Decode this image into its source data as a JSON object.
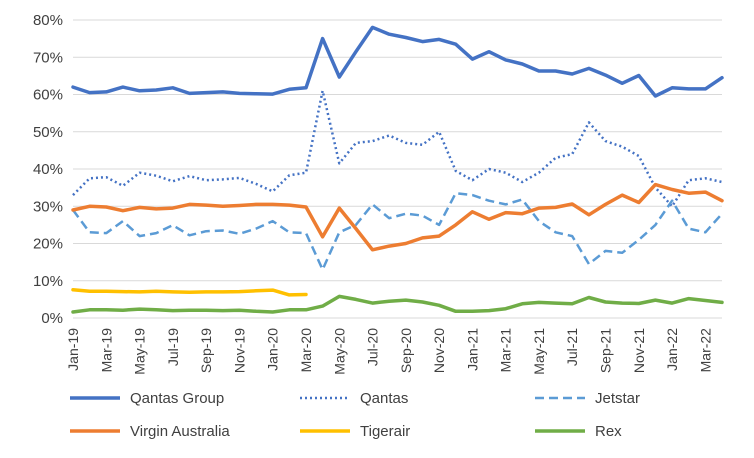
{
  "chart_data": {
    "type": "line",
    "title": "",
    "xlabel": "",
    "ylabel": "",
    "ylim": [
      0,
      0.8
    ],
    "y_ticks": [
      "0%",
      "10%",
      "20%",
      "30%",
      "40%",
      "50%",
      "60%",
      "70%",
      "80%"
    ],
    "grid": "horizontal",
    "legend_position": "bottom",
    "x": [
      "Jan-19",
      "Feb-19",
      "Mar-19",
      "Apr-19",
      "May-19",
      "Jun-19",
      "Jul-19",
      "Aug-19",
      "Sep-19",
      "Oct-19",
      "Nov-19",
      "Dec-19",
      "Jan-20",
      "Feb-20",
      "Mar-20",
      "Apr-20",
      "May-20",
      "Jun-20",
      "Jul-20",
      "Aug-20",
      "Sep-20",
      "Oct-20",
      "Nov-20",
      "Dec-20",
      "Jan-21",
      "Feb-21",
      "Mar-21",
      "Apr-21",
      "May-21",
      "Jun-21",
      "Jul-21",
      "Aug-21",
      "Sep-21",
      "Oct-21",
      "Nov-21",
      "Dec-21",
      "Jan-22",
      "Feb-22",
      "Mar-22",
      "Apr-22"
    ],
    "x_tick_labels": [
      "Jan-19",
      "Mar-19",
      "May-19",
      "Jul-19",
      "Sep-19",
      "Nov-19",
      "Jan-20",
      "Mar-20",
      "May-20",
      "Jul-20",
      "Sep-20",
      "Nov-20",
      "Jan-21",
      "Mar-21",
      "May-21",
      "Jul-21",
      "Sep-21",
      "Nov-21",
      "Jan-22",
      "Mar-22"
    ],
    "series": [
      {
        "name": "Qantas Group",
        "color": "#4472c4",
        "dash": "solid",
        "values": [
          0.62,
          0.605,
          0.607,
          0.62,
          0.61,
          0.612,
          0.618,
          0.603,
          0.605,
          0.607,
          0.603,
          0.602,
          0.601,
          0.614,
          0.618,
          0.75,
          0.647,
          0.715,
          0.78,
          0.762,
          0.753,
          0.742,
          0.748,
          0.735,
          0.695,
          0.715,
          0.693,
          0.682,
          0.663,
          0.663,
          0.655,
          0.67,
          0.652,
          0.63,
          0.651,
          0.596,
          0.618,
          0.615,
          0.615,
          0.645
        ]
      },
      {
        "name": "Qantas",
        "color": "#4472c4",
        "dash": "dotted",
        "values": [
          0.33,
          0.375,
          0.378,
          0.355,
          0.39,
          0.382,
          0.367,
          0.381,
          0.37,
          0.372,
          0.376,
          0.36,
          0.34,
          0.383,
          0.39,
          0.61,
          0.415,
          0.47,
          0.475,
          0.49,
          0.47,
          0.465,
          0.5,
          0.395,
          0.37,
          0.4,
          0.39,
          0.365,
          0.39,
          0.43,
          0.44,
          0.525,
          0.475,
          0.46,
          0.435,
          0.35,
          0.3,
          0.37,
          0.375,
          0.365
        ]
      },
      {
        "name": "Jetstar",
        "color": "#5b9bd5",
        "dash": "dashed",
        "values": [
          0.29,
          0.23,
          0.228,
          0.26,
          0.22,
          0.228,
          0.249,
          0.222,
          0.233,
          0.235,
          0.226,
          0.24,
          0.26,
          0.23,
          0.228,
          0.13,
          0.23,
          0.25,
          0.305,
          0.268,
          0.28,
          0.275,
          0.25,
          0.335,
          0.33,
          0.315,
          0.305,
          0.318,
          0.26,
          0.23,
          0.22,
          0.145,
          0.18,
          0.175,
          0.21,
          0.25,
          0.315,
          0.24,
          0.23,
          0.28
        ]
      },
      {
        "name": "Virgin Australia",
        "color": "#ed7d31",
        "dash": "solid",
        "values": [
          0.29,
          0.3,
          0.298,
          0.288,
          0.297,
          0.293,
          0.295,
          0.305,
          0.303,
          0.3,
          0.302,
          0.305,
          0.305,
          0.303,
          0.298,
          0.218,
          0.295,
          0.24,
          0.183,
          0.193,
          0.2,
          0.215,
          0.22,
          0.25,
          0.285,
          0.265,
          0.283,
          0.28,
          0.295,
          0.297,
          0.306,
          0.277,
          0.305,
          0.33,
          0.31,
          0.358,
          0.345,
          0.335,
          0.338,
          0.315
        ]
      },
      {
        "name": "Tigerair",
        "color": "#ffc000",
        "dash": "solid",
        "values": [
          0.076,
          0.072,
          0.072,
          0.071,
          0.07,
          0.072,
          0.07,
          0.069,
          0.07,
          0.07,
          0.071,
          0.073,
          0.075,
          0.062,
          0.063,
          null,
          null,
          null,
          null,
          null,
          null,
          null,
          null,
          null,
          null,
          null,
          null,
          null,
          null,
          null,
          null,
          null,
          null,
          null,
          null,
          null,
          null,
          null,
          null,
          null
        ]
      },
      {
        "name": "Rex",
        "color": "#70ad47",
        "dash": "solid",
        "values": [
          0.016,
          0.022,
          0.022,
          0.021,
          0.024,
          0.022,
          0.02,
          0.021,
          0.021,
          0.02,
          0.021,
          0.018,
          0.016,
          0.022,
          0.022,
          0.032,
          0.058,
          0.05,
          0.04,
          0.045,
          0.048,
          0.043,
          0.034,
          0.018,
          0.018,
          0.02,
          0.025,
          0.038,
          0.042,
          0.04,
          0.038,
          0.055,
          0.043,
          0.04,
          0.039,
          0.048,
          0.04,
          0.052,
          0.047,
          0.042
        ]
      }
    ]
  }
}
